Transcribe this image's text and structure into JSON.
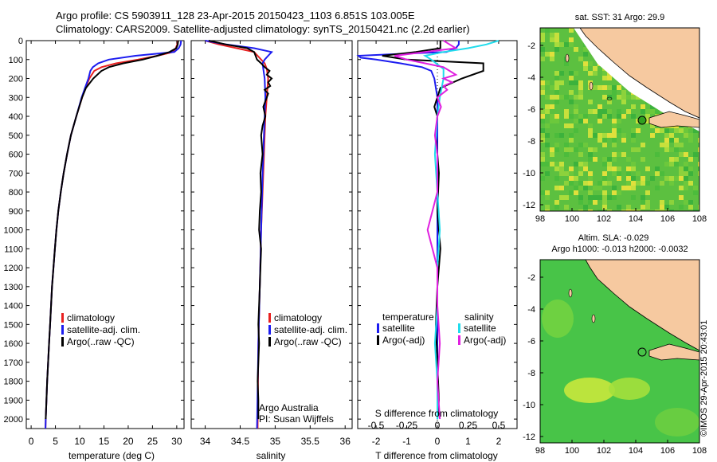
{
  "header": {
    "line1": "Argo profile: CS 5903911_128 23-Apr-2015 20150423_1103 6.851S 103.005E",
    "line2": "Climatology: CARS2009. Satellite-adjusted climatology: synTS_20150421.nc (2.2d earlier)"
  },
  "colors": {
    "climatology": "#e82020",
    "satellite": "#1c1cf0",
    "argo": "#000000",
    "sat_salinity": "#20dcec",
    "argo_adj_salinity": "#e020e0",
    "land": "#f6c9a0",
    "sst_green": "#7ccf3c",
    "sla_green": "#3cc43c"
  },
  "depth_axis": {
    "ticks": [
      "0",
      "100",
      "200",
      "300",
      "400",
      "500",
      "600",
      "700",
      "800",
      "900",
      "1000",
      "1100",
      "1200",
      "1300",
      "1400",
      "1500",
      "1600",
      "1700",
      "1800",
      "1900",
      "2000"
    ]
  },
  "panels": {
    "temperature": {
      "xlabel": "temperature (deg C)",
      "xticks": [
        "0",
        "5",
        "10",
        "15",
        "20",
        "25",
        "30"
      ],
      "legend": [
        "climatology",
        "satellite-adj. clim.",
        "Argo(..raw -QC)"
      ]
    },
    "salinity": {
      "xlabel": "salinity",
      "xticks": [
        "34",
        "34.5",
        "35",
        "35.5",
        "36"
      ],
      "legend": [
        "climatology",
        "satellite-adj. clim.",
        "Argo(..raw -QC)"
      ],
      "note1": "Argo Australia",
      "note2": "PI: Susan Wijffels"
    },
    "difference": {
      "xlabel": "T difference from climatology",
      "xticks": [
        "-2",
        "-1",
        "0",
        "1",
        "2"
      ],
      "top_xlabel": "S difference from climatology",
      "top_xticks": [
        "-0.5",
        "-0.25",
        "0",
        "0.25",
        "0.5"
      ],
      "legend_t_title": "temperature",
      "legend_s_title": "salinity",
      "legend_t": [
        "satellite",
        "Argo(-adj)"
      ],
      "legend_s": [
        "satellite",
        "Argo(-adj)"
      ]
    }
  },
  "maps": {
    "sst_title": "sat. SST: 31  Argo: 29.9",
    "sla_title1": "Altim. SLA: -0.029",
    "sla_title2": "Argo h1000: -0.013 h2000: -0.0032",
    "xticks": [
      "98",
      "100",
      "102",
      "104",
      "106",
      "108"
    ],
    "yticks": [
      "-2",
      "-4",
      "-6",
      "-8",
      "-10",
      "-12"
    ]
  },
  "credit": "©IMOS 29-Apr-2015 20:43:01",
  "chart_data": [
    {
      "type": "line",
      "xlabel": "temperature (deg C)",
      "ylabel": "",
      "xlim": [
        -1,
        31.5
      ],
      "ylim": [
        2050,
        0
      ],
      "series": [
        {
          "name": "climatology",
          "depth": [
            0,
            20,
            40,
            60,
            80,
            100,
            120,
            140,
            160,
            200,
            250,
            300,
            400,
            500,
            600,
            700,
            800,
            900,
            1000,
            1100,
            1200,
            1300,
            1400,
            1500,
            1600,
            1700,
            1800,
            1900,
            2000,
            2050
          ],
          "values": [
            30.2,
            30.1,
            29.8,
            29.2,
            26,
            22,
            17.5,
            14.5,
            13,
            12,
            11.2,
            10.5,
            9.3,
            8.2,
            7.4,
            6.7,
            6.1,
            5.6,
            5.2,
            4.9,
            4.6,
            4.3,
            4.1,
            3.9,
            3.7,
            3.5,
            3.3,
            3.15,
            3,
            2.95
          ]
        },
        {
          "name": "satellite-adj. clim.",
          "depth": [
            0,
            20,
            40,
            60,
            80,
            100,
            120,
            140,
            160,
            200,
            250,
            300,
            400,
            500,
            600,
            700,
            800,
            900,
            1000,
            1100,
            1200,
            1300,
            1400,
            1500,
            1600,
            1700,
            1800,
            1900,
            2000,
            2050
          ],
          "values": [
            30.9,
            30.8,
            30.4,
            29.5,
            21.5,
            16,
            13.8,
            12.7,
            12.2,
            11.8,
            11.1,
            10.4,
            9.3,
            8.2,
            7.4,
            6.7,
            6.1,
            5.6,
            5.2,
            4.9,
            4.6,
            4.3,
            4.1,
            3.9,
            3.7,
            3.5,
            3.3,
            3.15,
            3,
            2.95
          ]
        },
        {
          "name": "Argo(..raw -QC)",
          "depth": [
            0,
            20,
            40,
            60,
            80,
            100,
            120,
            140,
            160,
            200,
            250,
            300,
            400,
            500,
            600,
            700,
            800,
            900,
            1000,
            1100,
            1200,
            1300,
            1400,
            1500,
            1600,
            1700,
            1800,
            1900,
            2000
          ],
          "values": [
            30.3,
            30.2,
            29.9,
            28.5,
            26,
            23,
            19,
            16,
            14.5,
            12.8,
            11.3,
            10.5,
            9.3,
            8.2,
            7.4,
            6.7,
            6.1,
            5.6,
            5.2,
            4.9,
            4.6,
            4.3,
            4.1,
            3.9,
            3.7,
            3.5,
            3.3,
            3.15,
            3
          ]
        }
      ]
    },
    {
      "type": "line",
      "xlabel": "salinity",
      "ylabel": "",
      "xlim": [
        33.8,
        36.1
      ],
      "ylim": [
        2050,
        0
      ],
      "series": [
        {
          "name": "climatology",
          "depth": [
            0,
            20,
            40,
            60,
            80,
            100,
            120,
            150,
            200,
            300,
            400,
            500,
            700,
            1000,
            1300,
            1600,
            2050
          ],
          "values": [
            34.0,
            34.2,
            34.45,
            34.7,
            34.75,
            34.8,
            34.85,
            34.88,
            34.9,
            34.88,
            34.86,
            34.85,
            34.83,
            34.8,
            34.78,
            34.76,
            34.75
          ]
        },
        {
          "name": "satellite-adj. clim.",
          "depth": [
            0,
            20,
            40,
            60,
            80,
            100,
            120,
            150,
            200,
            300,
            400,
            500,
            700,
            1000,
            1300,
            1600,
            2050
          ],
          "values": [
            34.0,
            34.3,
            34.7,
            34.95,
            34.9,
            34.85,
            34.82,
            34.83,
            34.85,
            34.86,
            34.85,
            34.84,
            34.82,
            34.8,
            34.78,
            34.76,
            34.74
          ]
        },
        {
          "name": "Argo(..raw -QC)",
          "depth": [
            0,
            20,
            40,
            60,
            80,
            100,
            120,
            140,
            160,
            180,
            200,
            220,
            240,
            260,
            280,
            300,
            350,
            400,
            450,
            500,
            600,
            700,
            800,
            900,
            1000,
            1100,
            1200,
            1300,
            1400,
            1500,
            1600,
            1700,
            1800,
            1900,
            2000
          ],
          "values": [
            34.05,
            34.3,
            34.6,
            34.7,
            34.72,
            34.74,
            34.8,
            34.85,
            34.92,
            34.88,
            34.95,
            34.9,
            34.93,
            34.85,
            34.9,
            34.88,
            34.83,
            34.86,
            34.82,
            34.8,
            34.82,
            34.79,
            34.8,
            34.78,
            34.77,
            34.8,
            34.79,
            34.78,
            34.77,
            34.76,
            34.77,
            34.76,
            34.75,
            34.76,
            34.76
          ]
        }
      ]
    },
    {
      "type": "line",
      "xlabel": "T difference from climatology",
      "ylabel": "",
      "xlim": [
        -2.6,
        2.6
      ],
      "ylim": [
        2050,
        0
      ],
      "series": [
        {
          "name": "temperature satellite",
          "depth": [
            0,
            20,
            40,
            60,
            70,
            80,
            90,
            100,
            120,
            140,
            160,
            200,
            300,
            500,
            1000,
            1500,
            2000
          ],
          "values": [
            0.7,
            0.7,
            0.6,
            0.3,
            -1.2,
            -3,
            -2.5,
            -2,
            -1.2,
            -0.5,
            -0.2,
            -0.1,
            0,
            0,
            0,
            0,
            0
          ]
        },
        {
          "name": "temperature Argo(-adj)",
          "depth": [
            0,
            20,
            40,
            60,
            80,
            100,
            120,
            140,
            160,
            200,
            250,
            300,
            350,
            400,
            500,
            700,
            900,
            1100,
            1300,
            1500,
            1700,
            1900,
            2000
          ],
          "values": [
            0.1,
            0.1,
            0.1,
            -0.7,
            -1.8,
            -1,
            1.5,
            1.5,
            1.5,
            0.8,
            0.1,
            0,
            -0.1,
            0,
            -0.05,
            0.05,
            0,
            0.1,
            0,
            -0.05,
            0,
            0.05,
            0
          ]
        },
        {
          "name": "salinity satellite",
          "depth": [
            0,
            20,
            40,
            60,
            80,
            100,
            150,
            200,
            300,
            400,
            600,
            800,
            1000,
            1200,
            1400,
            1600,
            1800,
            2000
          ],
          "values": [
            0.5,
            0.4,
            0.25,
            0.05,
            -0.1,
            -0.05,
            0.05,
            0.05,
            0.02,
            0,
            -0.02,
            0,
            0.02,
            0,
            0,
            -0.02,
            0,
            0
          ]
        },
        {
          "name": "salinity Argo(-adj)",
          "depth": [
            0,
            20,
            40,
            60,
            80,
            100,
            120,
            140,
            160,
            180,
            200,
            220,
            240,
            260,
            300,
            350,
            400,
            500,
            600,
            800,
            1000,
            1100,
            1200,
            1400,
            1600,
            1800,
            2000
          ],
          "values": [
            0.05,
            0.1,
            0.15,
            -0.1,
            -0.35,
            -0.25,
            -0.1,
            0.05,
            0.1,
            0.15,
            0.05,
            0.12,
            0.05,
            0.08,
            0,
            0.03,
            0,
            -0.02,
            0,
            0,
            -0.08,
            -0.04,
            0,
            0,
            0.02,
            0,
            0.02
          ]
        }
      ]
    }
  ]
}
